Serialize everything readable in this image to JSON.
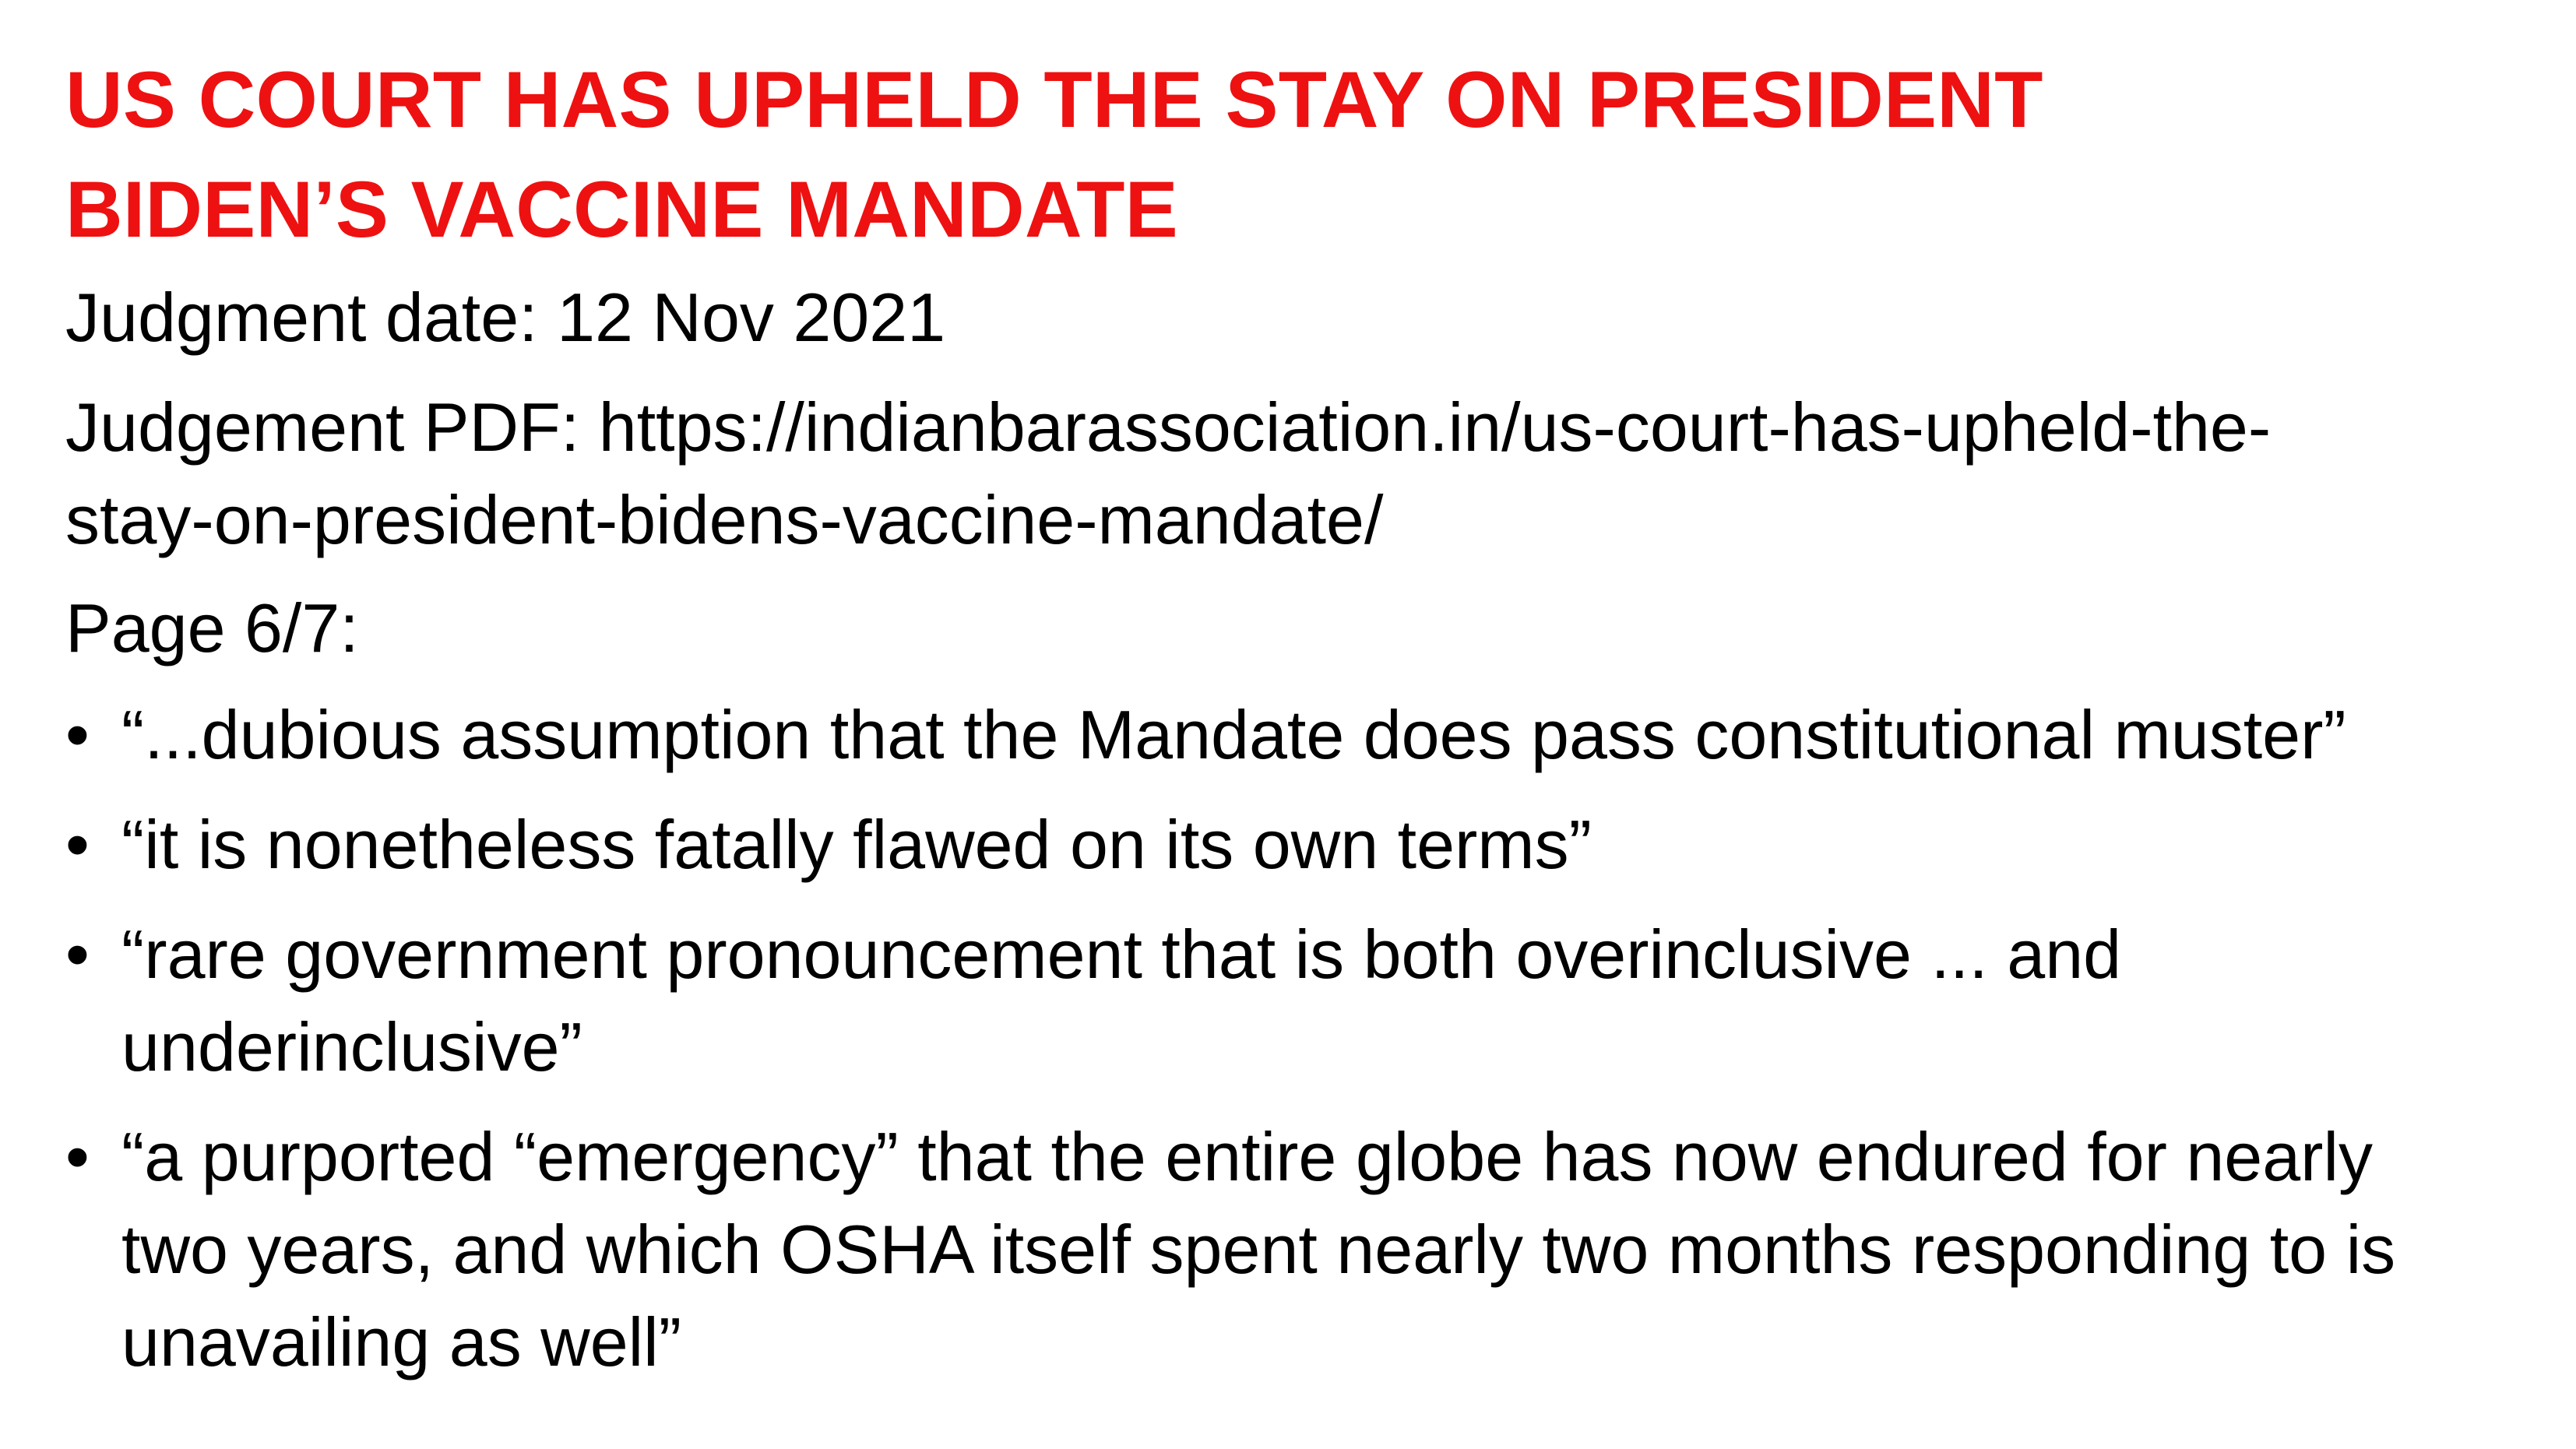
{
  "title": {
    "line1": "US COURT HAS UPHELD THE STAY ON PRESIDENT",
    "line2": "BIDEN’S VACCINE MANDATE"
  },
  "judgment_date": "Judgment date: 12 Nov 2021",
  "judgement_pdf": {
    "line1": "Judgement PDF: https://indianbarassociation.in/us-court-has-upheld-the-",
    "line2": "stay-on-president-bidens-vaccine-mandate/"
  },
  "page": "Page 6/7:",
  "bullet_symbol": "•",
  "bullets": [
    {
      "lines": [
        "“...dubious assumption that the Mandate does pass constitutional muster”"
      ]
    },
    {
      "lines": [
        "“it is nonetheless fatally flawed on its own terms”"
      ]
    },
    {
      "lines": [
        "“rare government pronouncement that is both overinclusive ... and",
        "underinclusive”"
      ]
    },
    {
      "lines": [
        "“a purported “emergency” that the entire globe has now endured for nearly",
        "two years, and which OSHA itself spent nearly two months responding to is",
        "unavailing as well”"
      ]
    }
  ],
  "colors": {
    "title": "#EE1111",
    "text": "#000000",
    "background": "#FFFFFF"
  }
}
